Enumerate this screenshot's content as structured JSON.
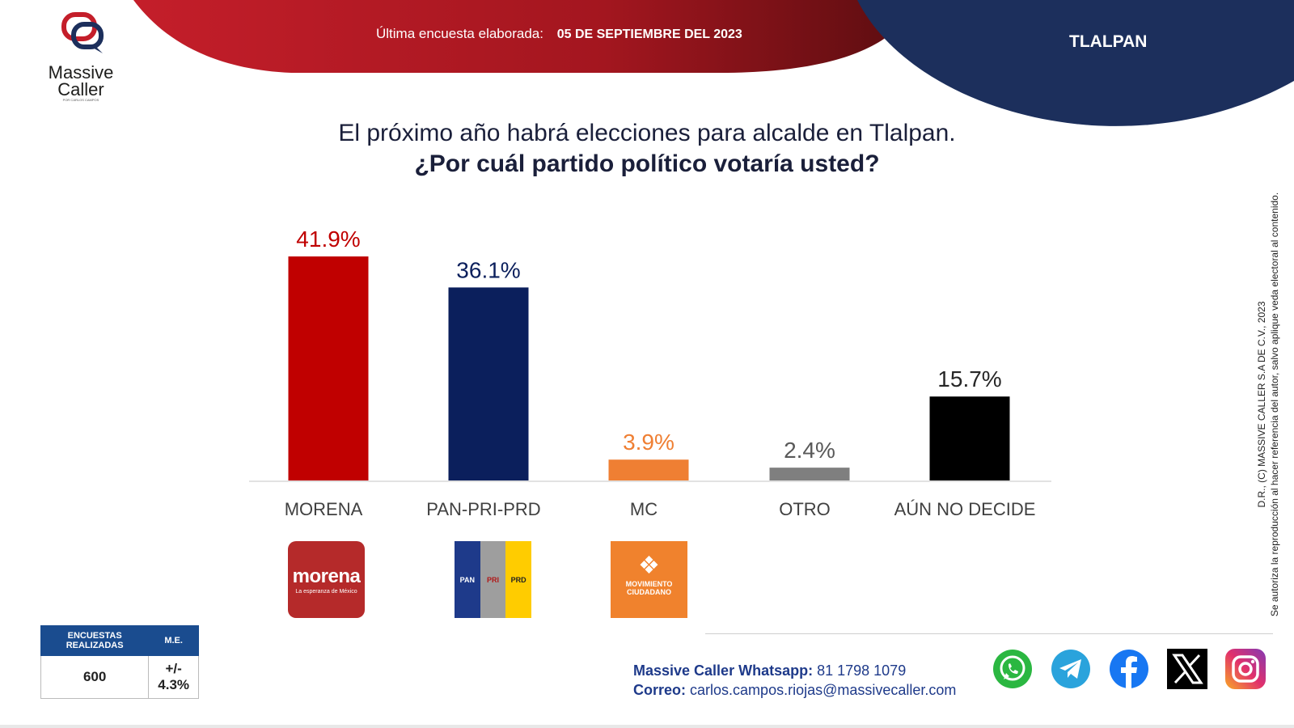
{
  "brand": {
    "name_line1": "Massive",
    "name_line2": "Caller",
    "tagline": "POR CARLOS CAMPOS"
  },
  "header": {
    "survey_label": "Última encuesta elaborada:",
    "survey_date": "05 DE SEPTIEMBRE DEL 2023",
    "region": "TLALPAN"
  },
  "question": {
    "line1": "El próximo año habrá elecciones para alcalde en Tlalpan.",
    "line2": "¿Por cuál partido político votaría usted?"
  },
  "chart_data": {
    "type": "bar",
    "categories": [
      "MORENA",
      "PAN-PRI-PRD",
      "MC",
      "OTRO",
      "AÚN NO DECIDE"
    ],
    "values": [
      41.9,
      36.1,
      3.9,
      2.4,
      15.7
    ],
    "value_labels": [
      "41.9%",
      "36.1%",
      "3.9%",
      "2.4%",
      "15.7%"
    ],
    "bar_colors": [
      "#c00000",
      "#0b1f5c",
      "#ef7f33",
      "#7f7f7f",
      "#000000"
    ],
    "label_colors": [
      "#c00000",
      "#0b1f5c",
      "#ef7f33",
      "#595959",
      "#262626"
    ],
    "ylim": [
      0,
      45
    ],
    "grid": false
  },
  "party_logos": {
    "morena_word": "morena",
    "morena_slogan": "La esperanza de México",
    "pan": "PAN",
    "pri": "PRI",
    "prd": "PRD",
    "mc_line1": "MOVIMIENTO",
    "mc_line2": "CIUDADANO"
  },
  "stats": {
    "surveys_header": "ENCUESTAS REALIZADAS",
    "me_header": "M.E.",
    "surveys_value": "600",
    "me_value": "+/- 4.3%"
  },
  "contact": {
    "whatsapp_label": "Massive Caller Whatsapp:",
    "whatsapp_number": "81 1798 1079",
    "email_label": "Correo:",
    "email": "carlos.campos.riojas@massivecaller.com"
  },
  "copyright": {
    "line1": "D.R., (C) MASSIVE CALLER S.A DE C.V., 2023",
    "line2": "Se autoriza la reproducción al hacer referencia del autor, salvo aplique veda electoral al contenido."
  },
  "social_icons": [
    "whatsapp-icon",
    "telegram-icon",
    "facebook-icon",
    "x-icon",
    "instagram-icon"
  ]
}
